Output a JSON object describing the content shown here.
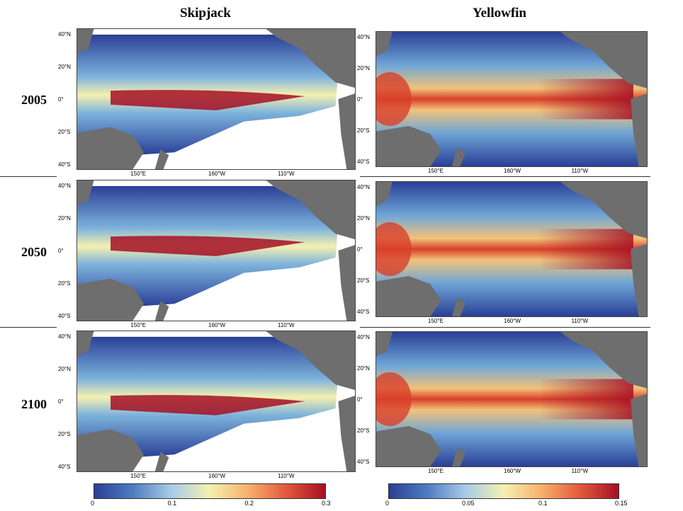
{
  "columns": [
    {
      "name": "Skipjack"
    },
    {
      "name": "Yellowfin"
    }
  ],
  "rows": [
    {
      "year": "2005"
    },
    {
      "year": "2050"
    },
    {
      "year": "2100"
    }
  ],
  "axes": {
    "lat_ticks": [
      "40°N",
      "20°N",
      "0°",
      "20°S",
      "40°S"
    ],
    "lon_ticks": [
      "150°E",
      "160°W",
      "110°W"
    ]
  },
  "colorbars": [
    {
      "species": "Skipjack",
      "ticks": [
        "0",
        "0.1",
        "0.2",
        "0.3"
      ],
      "range": [
        0,
        0.3
      ]
    },
    {
      "species": "Yellowfin",
      "ticks": [
        "0",
        "0.05",
        "0.1",
        "0.15"
      ],
      "range": [
        0,
        0.15
      ]
    }
  ],
  "colors": {
    "land": "#6e6e6e",
    "low": "#2a3f97",
    "mid": "#f5f0b0",
    "high": "#a50f24"
  }
}
